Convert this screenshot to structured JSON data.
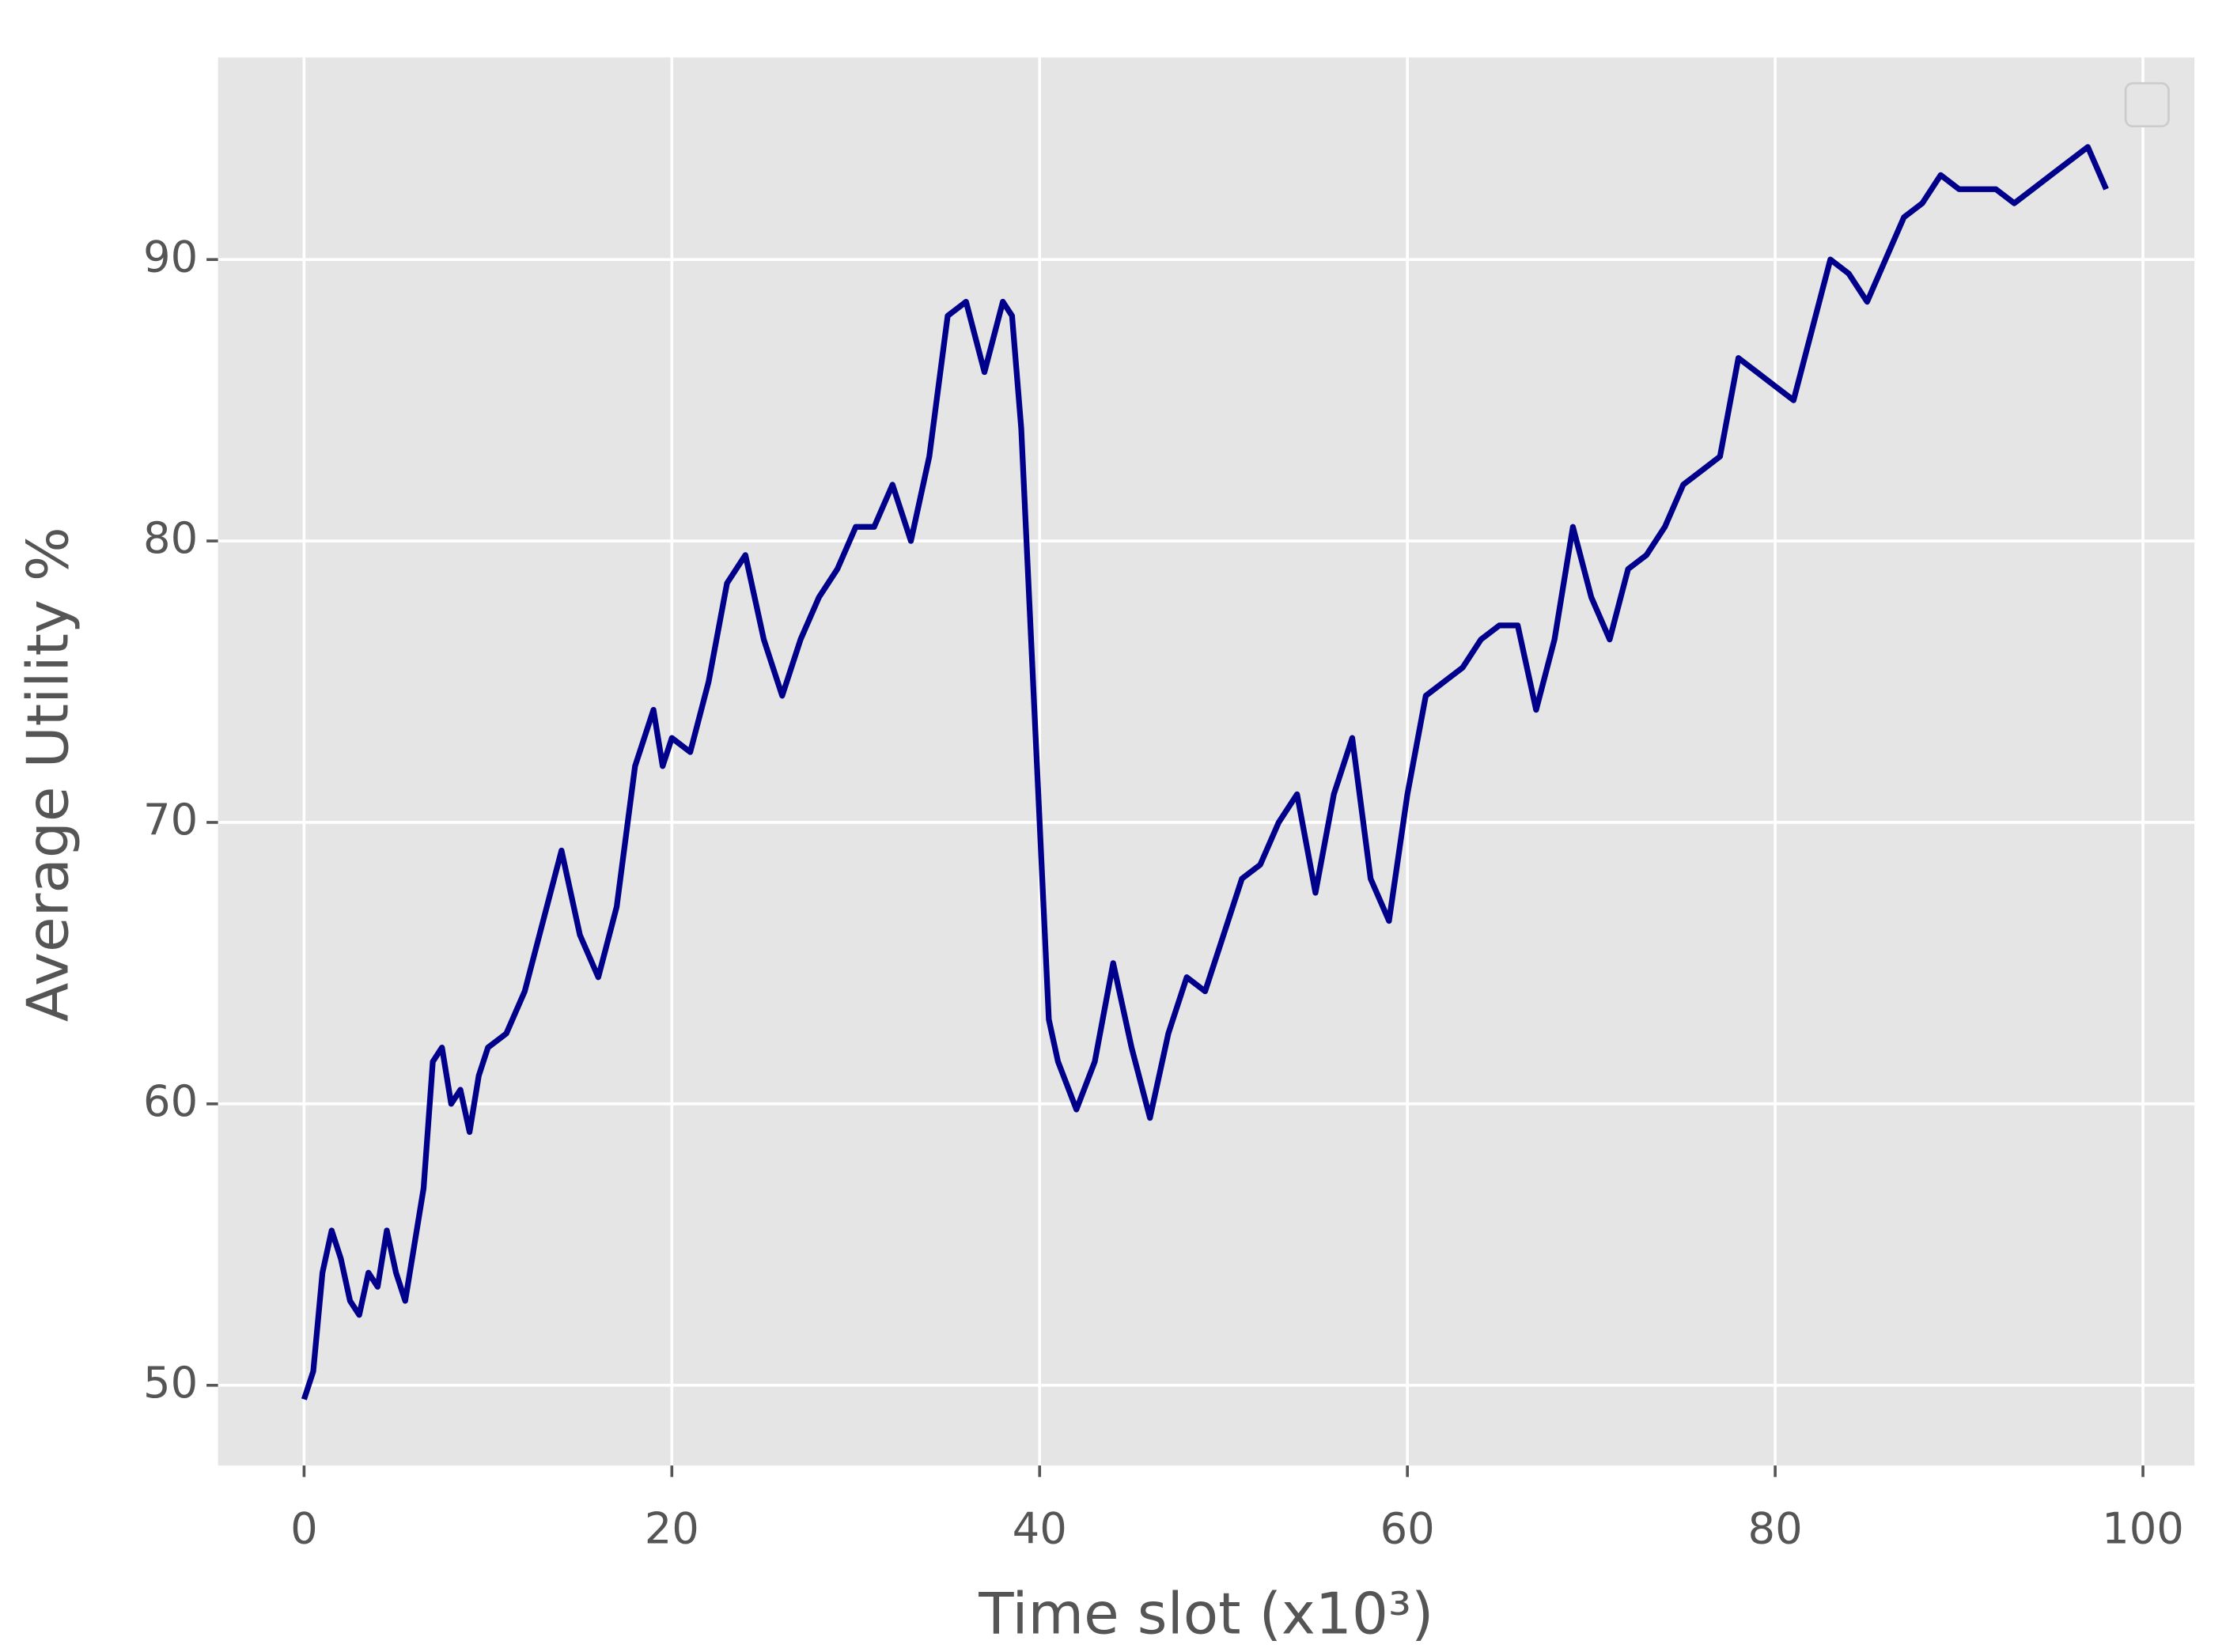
{
  "chart_data": {
    "type": "line",
    "xlabel": "Time slot (x10³)",
    "ylabel": "Average Utility %",
    "x": [
      0,
      0.5,
      1,
      1.5,
      2,
      2.5,
      3,
      3.5,
      4,
      4.5,
      5,
      5.5,
      6,
      6.5,
      7,
      7.5,
      8,
      8.5,
      9,
      9.5,
      10,
      11,
      12,
      13,
      14,
      15,
      16,
      17,
      18,
      19,
      19.5,
      20,
      21,
      22,
      23,
      24,
      25,
      26,
      27,
      28,
      29,
      30,
      31,
      32,
      33,
      34,
      35,
      36,
      37,
      38,
      38.5,
      39,
      40,
      40.5,
      41,
      42,
      43,
      44,
      45,
      46,
      47,
      48,
      49,
      50,
      51,
      52,
      53,
      54,
      55,
      56,
      57,
      58,
      59,
      60,
      61,
      62,
      63,
      64,
      65,
      66,
      67,
      68,
      69,
      70,
      71,
      72,
      73,
      74,
      75,
      76,
      77,
      78,
      79,
      80,
      81,
      82,
      83,
      84,
      85,
      86,
      87,
      88,
      89,
      90,
      91,
      92,
      93,
      94,
      95,
      96,
      97,
      98
    ],
    "values": [
      49.5,
      50.5,
      54,
      55.5,
      54.5,
      53,
      52.5,
      54,
      53.5,
      55.5,
      54,
      53,
      55,
      57,
      61.5,
      62,
      60,
      60.5,
      59,
      61,
      62,
      62.5,
      64,
      66.5,
      69,
      66,
      64.5,
      67,
      72,
      74,
      72,
      73,
      72.5,
      75,
      78.5,
      79.5,
      76.5,
      74.5,
      76.5,
      78,
      79,
      80.5,
      80.5,
      82,
      80,
      83,
      88,
      88.5,
      86,
      88.5,
      88,
      84,
      70,
      63,
      61.5,
      59.8,
      61.5,
      65,
      62,
      59.5,
      62.5,
      64.5,
      64,
      66,
      68,
      68.5,
      70,
      71,
      67.5,
      71,
      73,
      68,
      66.5,
      71,
      74.5,
      75,
      75.5,
      76.5,
      77,
      77,
      74,
      76.5,
      80.5,
      78,
      76.5,
      79,
      79.5,
      80.5,
      82,
      82.5,
      83,
      86.5,
      86,
      85.5,
      85,
      87.5,
      90,
      89.5,
      88.5,
      90,
      91.5,
      92,
      93,
      92.5,
      92.5,
      92.5,
      92,
      92.5,
      93,
      93.5,
      94,
      92.5
    ],
    "color": "#00008b",
    "xlim": [
      -4.68,
      102.8
    ],
    "ylim": [
      47.15,
      97.18
    ],
    "xticks": [
      0,
      20,
      40,
      60,
      80,
      100
    ],
    "yticks": [
      50,
      60,
      70,
      80,
      90
    ],
    "grid": true
  }
}
